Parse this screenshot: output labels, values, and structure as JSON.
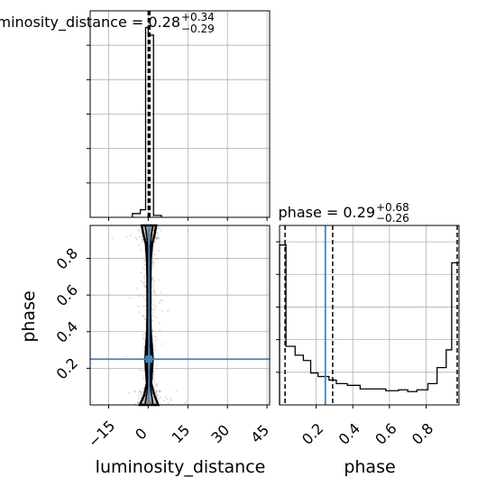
{
  "chart_data": {
    "type": "corner",
    "parameters": [
      "luminosity_distance",
      "phase"
    ],
    "panels": [
      {
        "id": "hist-luminosity_distance",
        "type": "histogram",
        "title_main": "luminosity_distance = 0.28",
        "title_sup": "+0.34",
        "title_sub": "−0.29",
        "x_range": [
          -22,
          46
        ],
        "xticks": [
          -15,
          0,
          15,
          30,
          45
        ],
        "grid": true,
        "bins": [
          {
            "x0": -6,
            "x1": -3,
            "count": 0.02
          },
          {
            "x0": -3,
            "x1": -1,
            "count": 0.04
          },
          {
            "x0": -1,
            "x1": 0,
            "count": 1.0
          },
          {
            "x0": 0,
            "x1": 2,
            "count": 0.96
          },
          {
            "x0": 2,
            "x1": 5,
            "count": 0.01
          }
        ],
        "quantile_lines": [
          -0.01,
          0.28,
          0.62
        ]
      },
      {
        "id": "hist-phase",
        "type": "histogram",
        "title_main": "phase = 0.29",
        "title_sup": "+0.68",
        "title_sub": "−0.26",
        "x_range": [
          0.0,
          0.98
        ],
        "xticks": [
          0.2,
          0.4,
          0.6,
          0.8
        ],
        "xtick_labels": [
          "0.2",
          "0.4",
          "0.6",
          "0.8"
        ],
        "grid": true,
        "bins": [
          {
            "x0": 0.0,
            "x1": 0.035,
            "count": 0.9
          },
          {
            "x0": 0.035,
            "x1": 0.085,
            "count": 0.33
          },
          {
            "x0": 0.085,
            "x1": 0.13,
            "count": 0.28
          },
          {
            "x0": 0.13,
            "x1": 0.17,
            "count": 0.25
          },
          {
            "x0": 0.17,
            "x1": 0.21,
            "count": 0.18
          },
          {
            "x0": 0.21,
            "x1": 0.27,
            "count": 0.16
          },
          {
            "x0": 0.27,
            "x1": 0.31,
            "count": 0.14
          },
          {
            "x0": 0.31,
            "x1": 0.37,
            "count": 0.12
          },
          {
            "x0": 0.37,
            "x1": 0.44,
            "count": 0.11
          },
          {
            "x0": 0.44,
            "x1": 0.58,
            "count": 0.09
          },
          {
            "x0": 0.58,
            "x1": 0.65,
            "count": 0.08
          },
          {
            "x0": 0.65,
            "x1": 0.7,
            "count": 0.085
          },
          {
            "x0": 0.7,
            "x1": 0.75,
            "count": 0.075
          },
          {
            "x0": 0.75,
            "x1": 0.81,
            "count": 0.085
          },
          {
            "x0": 0.81,
            "x1": 0.86,
            "count": 0.12
          },
          {
            "x0": 0.86,
            "x1": 0.91,
            "count": 0.21
          },
          {
            "x0": 0.91,
            "x1": 0.94,
            "count": 0.31
          },
          {
            "x0": 0.94,
            "x1": 0.98,
            "count": 0.8
          }
        ],
        "quantile_lines": [
          0.03,
          0.29,
          0.97
        ],
        "truth_line": 0.25
      },
      {
        "id": "joint",
        "type": "2d-density",
        "x_param": "luminosity_distance",
        "y_param": "phase",
        "x_range": [
          -22,
          46
        ],
        "y_range": [
          0.0,
          0.98
        ],
        "xticks": [
          -15,
          0,
          15,
          30,
          45
        ],
        "xtick_labels": [
          "−15",
          "0",
          "15",
          "30",
          "45"
        ],
        "yticks": [
          0.2,
          0.4,
          0.6,
          0.8
        ],
        "ytick_labels": [
          "0.2",
          "0.4",
          "0.6",
          "0.8"
        ],
        "xlabel": "luminosity_distance",
        "ylabel": "phase",
        "grid": true,
        "truth": {
          "x": 0.28,
          "y": 0.25
        },
        "contour_levels": [
          {
            "level": "outer",
            "left": [
              [
                0.0,
                -3.2
              ],
              [
                0.05,
                -1.6
              ],
              [
                0.12,
                -0.5
              ],
              [
                0.2,
                -0.9
              ],
              [
                0.25,
                -1.1
              ],
              [
                0.3,
                -0.9
              ],
              [
                0.4,
                -0.45
              ],
              [
                0.5,
                -0.3
              ],
              [
                0.6,
                -0.3
              ],
              [
                0.7,
                -0.35
              ],
              [
                0.8,
                -0.5
              ],
              [
                0.88,
                -0.9
              ],
              [
                0.93,
                -1.8
              ],
              [
                0.98,
                -2.5
              ]
            ],
            "right": [
              [
                0.0,
                3.8
              ],
              [
                0.05,
                2.4
              ],
              [
                0.12,
                1.1
              ],
              [
                0.2,
                1.5
              ],
              [
                0.25,
                1.7
              ],
              [
                0.3,
                1.5
              ],
              [
                0.4,
                0.95
              ],
              [
                0.5,
                0.8
              ],
              [
                0.6,
                0.8
              ],
              [
                0.7,
                0.85
              ],
              [
                0.8,
                1.0
              ],
              [
                0.88,
                1.5
              ],
              [
                0.93,
                2.4
              ],
              [
                0.98,
                3.0
              ]
            ]
          },
          {
            "level": "inner",
            "left": [
              [
                0.0,
                -1.2
              ],
              [
                0.06,
                -0.6
              ],
              [
                0.13,
                0.0
              ],
              [
                0.2,
                -0.3
              ],
              [
                0.25,
                -0.4
              ],
              [
                0.3,
                -0.3
              ],
              [
                0.4,
                0.0
              ],
              [
                0.55,
                0.05
              ],
              [
                0.7,
                0.0
              ],
              [
                0.82,
                -0.1
              ],
              [
                0.9,
                -0.4
              ],
              [
                0.95,
                -0.8
              ],
              [
                0.98,
                -1.2
              ]
            ],
            "right": [
              [
                0.0,
                1.8
              ],
              [
                0.06,
                1.2
              ],
              [
                0.13,
                0.6
              ],
              [
                0.2,
                0.9
              ],
              [
                0.25,
                1.0
              ],
              [
                0.3,
                0.9
              ],
              [
                0.4,
                0.55
              ],
              [
                0.55,
                0.5
              ],
              [
                0.7,
                0.55
              ],
              [
                0.82,
                0.65
              ],
              [
                0.9,
                1.0
              ],
              [
                0.95,
                1.4
              ],
              [
                0.98,
                1.8
              ]
            ]
          }
        ]
      }
    ],
    "colors": {
      "axes": "#000000",
      "grid": "#b0b0b0",
      "hist": "#000000",
      "quantile": "#000000",
      "truth": "#4682b4",
      "samples": "#999999",
      "contour": "#000000"
    }
  }
}
